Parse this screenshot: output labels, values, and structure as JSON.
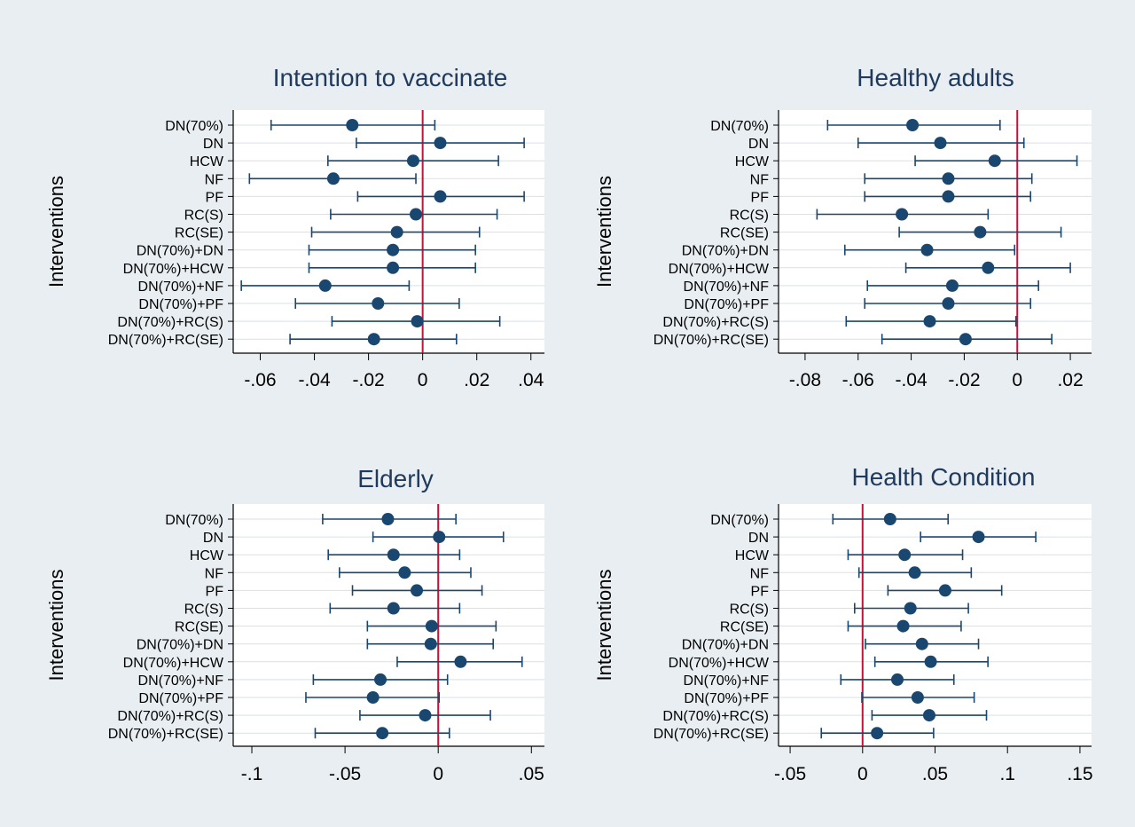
{
  "colors": {
    "background": "#e9eef2",
    "plot_background": "#ffffff",
    "marker": "#1a476f",
    "title": "#1f3a5c",
    "gridline": "#d8e0e6",
    "reference_line": "#c0143c"
  },
  "chart_data": [
    {
      "type": "scatter",
      "title": "Intention to vaccinate",
      "ylabel": "Interventions",
      "xlabel": "",
      "xlim": [
        -0.07,
        0.045
      ],
      "xticks": [
        -0.06,
        -0.04,
        -0.02,
        0,
        0.02,
        0.04
      ],
      "xtick_labels": [
        "-.06",
        "-.04",
        "-.02",
        "0",
        ".02",
        ".04"
      ],
      "reference_x": 0,
      "grid": true,
      "categories": [
        "DN(70%)",
        "DN",
        "HCW",
        "NF",
        "PF",
        "RC(S)",
        "RC(SE)",
        "DN(70%)+DN",
        "DN(70%)+HCW",
        "DN(70%)+NF",
        "DN(70%)+PF",
        "DN(70%)+RC(S)",
        "DN(70%)+RC(SE)"
      ],
      "estimates": [
        -0.026,
        0.0065,
        -0.0035,
        -0.033,
        0.0065,
        -0.0025,
        -0.0095,
        -0.011,
        -0.011,
        -0.036,
        -0.0165,
        -0.002,
        -0.018
      ],
      "lower": [
        -0.056,
        -0.0245,
        -0.035,
        -0.064,
        -0.024,
        -0.034,
        -0.041,
        -0.042,
        -0.042,
        -0.067,
        -0.047,
        -0.0335,
        -0.049
      ],
      "upper": [
        0.0045,
        0.0375,
        0.028,
        -0.0025,
        0.0375,
        0.0275,
        0.021,
        0.0195,
        0.0195,
        -0.005,
        0.0135,
        0.0285,
        0.0125
      ]
    },
    {
      "type": "scatter",
      "title": "Healthy adults",
      "ylabel": "Interventions",
      "xlabel": "",
      "xlim": [
        -0.09,
        0.028
      ],
      "xticks": [
        -0.08,
        -0.06,
        -0.04,
        -0.02,
        0,
        0.02
      ],
      "xtick_labels": [
        "-.08",
        "-.06",
        "-.04",
        "-.02",
        "0",
        ".02"
      ],
      "reference_x": 0,
      "grid": true,
      "categories": [
        "DN(70%)",
        "DN",
        "HCW",
        "NF",
        "PF",
        "RC(S)",
        "RC(SE)",
        "DN(70%)+DN",
        "DN(70%)+HCW",
        "DN(70%)+NF",
        "DN(70%)+PF",
        "DN(70%)+RC(S)",
        "DN(70%)+RC(SE)"
      ],
      "estimates": [
        -0.0395,
        -0.029,
        -0.0085,
        -0.026,
        -0.026,
        -0.0435,
        -0.014,
        -0.034,
        -0.011,
        -0.0245,
        -0.026,
        -0.033,
        -0.0195
      ],
      "lower": [
        -0.0715,
        -0.06,
        -0.0385,
        -0.0575,
        -0.0575,
        -0.0755,
        -0.0445,
        -0.065,
        -0.042,
        -0.0565,
        -0.0575,
        -0.0645,
        -0.051
      ],
      "upper": [
        -0.0065,
        0.0025,
        0.0225,
        0.0055,
        0.005,
        -0.011,
        0.0165,
        -0.001,
        0.02,
        0.008,
        0.005,
        -0.0005,
        0.013
      ]
    },
    {
      "type": "scatter",
      "title": "Elderly",
      "ylabel": "Interventions",
      "xlabel": "",
      "xlim": [
        -0.11,
        0.057
      ],
      "xticks": [
        -0.1,
        -0.05,
        0,
        0.05
      ],
      "xtick_labels": [
        "-.1",
        "-.05",
        "0",
        ".05"
      ],
      "reference_x": 0,
      "grid": true,
      "categories": [
        "DN(70%)",
        "DN",
        "HCW",
        "NF",
        "PF",
        "RC(S)",
        "RC(SE)",
        "DN(70%)+DN",
        "DN(70%)+HCW",
        "DN(70%)+NF",
        "DN(70%)+PF",
        "DN(70%)+RC(S)",
        "DN(70%)+RC(SE)"
      ],
      "estimates": [
        -0.027,
        0.0005,
        -0.024,
        -0.018,
        -0.0115,
        -0.024,
        -0.0035,
        -0.004,
        0.012,
        -0.031,
        -0.035,
        -0.007,
        -0.03
      ],
      "lower": [
        -0.062,
        -0.035,
        -0.059,
        -0.053,
        -0.046,
        -0.058,
        -0.038,
        -0.038,
        -0.022,
        -0.067,
        -0.071,
        -0.042,
        -0.066
      ],
      "upper": [
        0.0095,
        0.035,
        0.0115,
        0.0175,
        0.0235,
        0.0115,
        0.031,
        0.0295,
        0.045,
        0.005,
        0.0005,
        0.028,
        0.006
      ]
    },
    {
      "type": "scatter",
      "title": "Health Condition",
      "ylabel": "Interventions",
      "xlabel": "",
      "xlim": [
        -0.058,
        0.158
      ],
      "xticks": [
        -0.05,
        0,
        0.05,
        0.1,
        0.15
      ],
      "xtick_labels": [
        "-.05",
        "0",
        ".05",
        ".1",
        ".15"
      ],
      "reference_x": 0,
      "grid": true,
      "categories": [
        "DN(70%)",
        "DN",
        "HCW",
        "NF",
        "PF",
        "RC(S)",
        "RC(SE)",
        "DN(70%)+DN",
        "DN(70%)+HCW",
        "DN(70%)+NF",
        "DN(70%)+PF",
        "DN(70%)+RC(S)",
        "DN(70%)+RC(SE)"
      ],
      "estimates": [
        0.019,
        0.08,
        0.029,
        0.036,
        0.057,
        0.033,
        0.028,
        0.041,
        0.047,
        0.024,
        0.038,
        0.046,
        0.01
      ],
      "lower": [
        -0.0205,
        0.04,
        -0.01,
        -0.0025,
        0.0175,
        -0.0055,
        -0.01,
        0.002,
        0.0085,
        -0.015,
        -0.0005,
        0.0065,
        -0.0285
      ],
      "upper": [
        0.059,
        0.1195,
        0.069,
        0.075,
        0.096,
        0.073,
        0.068,
        0.08,
        0.0865,
        0.063,
        0.077,
        0.0855,
        0.049
      ]
    }
  ]
}
